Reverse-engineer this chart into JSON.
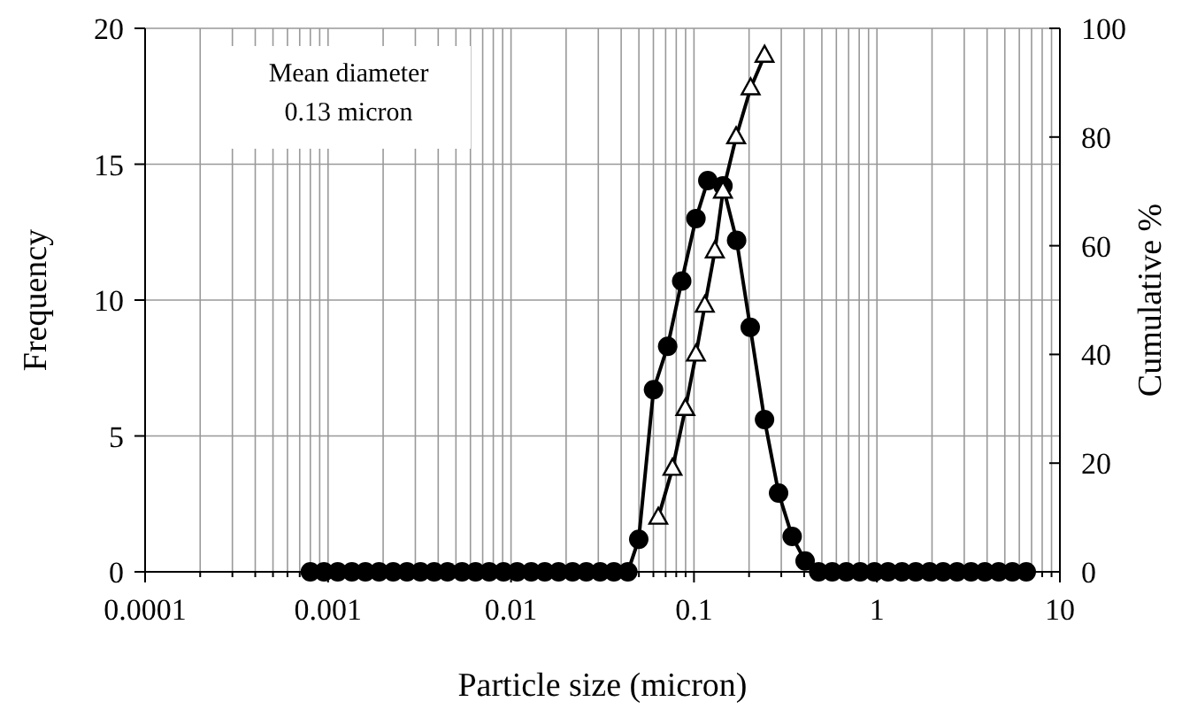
{
  "chart_data": {
    "type": "line",
    "xlabel": "Particle size (micron)",
    "ylabel": "Frequency",
    "y2label": "Cumulative %",
    "log": "x",
    "grid": true,
    "line_style": "solid",
    "xlim": [
      0.0001,
      10
    ],
    "xticks": [
      0.0001,
      {
        "value": 0.0002,
        "label": null
      },
      {
        "value": 0.0003,
        "label": null
      },
      {
        "value": 0.0004,
        "label": null
      },
      {
        "value": 0.0005,
        "label": null
      },
      {
        "value": 0.0006,
        "label": null
      },
      {
        "value": 0.0007,
        "label": null
      },
      {
        "value": 0.0008,
        "label": null
      },
      {
        "value": 0.0009,
        "label": null
      },
      0.001,
      {
        "value": 0.002,
        "label": null
      },
      {
        "value": 0.003,
        "label": null
      },
      {
        "value": 0.004,
        "label": null
      },
      {
        "value": 0.005,
        "label": null
      },
      {
        "value": 0.006,
        "label": null
      },
      {
        "value": 0.007,
        "label": null
      },
      {
        "value": 0.008,
        "label": null
      },
      {
        "value": 0.009,
        "label": null
      },
      0.01,
      {
        "value": 0.02,
        "label": null
      },
      {
        "value": 0.03,
        "label": null
      },
      {
        "value": 0.04,
        "label": null
      },
      {
        "value": 0.05,
        "label": null
      },
      {
        "value": 0.06,
        "label": null
      },
      {
        "value": 0.07,
        "label": null
      },
      {
        "value": 0.08,
        "label": null
      },
      {
        "value": 0.09,
        "label": null
      },
      0.1,
      {
        "value": 0.2,
        "label": null
      },
      {
        "value": 0.3,
        "label": null
      },
      {
        "value": 0.4,
        "label": null
      },
      {
        "value": 0.5,
        "label": null
      },
      {
        "value": 0.6,
        "label": null
      },
      {
        "value": 0.7,
        "label": null
      },
      {
        "value": 0.8,
        "label": null
      },
      {
        "value": 0.9,
        "label": null
      },
      1,
      {
        "value": 2,
        "label": null
      },
      {
        "value": 3,
        "label": null
      },
      {
        "value": 4,
        "label": null
      },
      {
        "value": 5,
        "label": null
      },
      {
        "value": 6,
        "label": null
      },
      {
        "value": 7,
        "label": null
      },
      {
        "value": 8,
        "label": null
      },
      {
        "value": 9,
        "label": null
      },
      10
    ],
    "ylim": [
      0,
      20
    ],
    "yticks": [
      0,
      5,
      10,
      15,
      20
    ],
    "y2lim": [
      0,
      100
    ],
    "y2ticks": [
      0,
      20,
      40,
      60,
      80,
      100
    ],
    "annotations": [
      "Mean diameter\n0.13 micron"
    ],
    "series": [
      {
        "color": "#000000",
        "marker": "circle",
        "x": [
          0.0008,
          0.00095,
          0.00113,
          0.00135,
          0.0016,
          0.0019,
          0.00227,
          0.0027,
          0.0032,
          0.0038,
          0.0045,
          0.0054,
          0.0064,
          0.0076,
          0.0091,
          0.0108,
          0.0129,
          0.0153,
          0.0182,
          0.0217,
          0.0258,
          0.0307,
          0.0365,
          0.0435,
          0.0499,
          0.0601,
          0.0718,
          0.0857,
          0.1025,
          0.119,
          0.144,
          0.171,
          0.203,
          0.243,
          0.29,
          0.344,
          0.405,
          0.48,
          0.57,
          0.68,
          0.81,
          0.97,
          1.15,
          1.37,
          1.63,
          1.94,
          2.3,
          2.74,
          3.27,
          3.89,
          4.63,
          5.5,
          6.55
        ],
        "values": [
          0,
          0,
          0,
          0,
          0,
          0,
          0,
          0,
          0,
          0,
          0,
          0,
          0,
          0,
          0,
          0,
          0,
          0,
          0,
          0,
          0,
          0,
          0,
          0,
          1.2,
          6.7,
          8.3,
          10.7,
          13,
          14.4,
          14.2,
          12.2,
          9,
          5.6,
          2.9,
          1.3,
          0.4,
          0,
          0,
          0,
          0,
          0,
          0,
          0,
          0,
          0,
          0,
          0,
          0,
          0,
          0,
          0,
          0
        ]
      },
      {
        "color": "#000000",
        "marker": "triangle",
        "axis": "y2",
        "x": [
          0.0638,
          0.0763,
          0.0897,
          0.1025,
          0.1146,
          0.13,
          0.144,
          0.17,
          0.204,
          0.243
        ],
        "values": [
          10,
          19,
          30,
          40,
          49,
          59,
          70,
          80,
          89,
          95
        ]
      }
    ]
  }
}
